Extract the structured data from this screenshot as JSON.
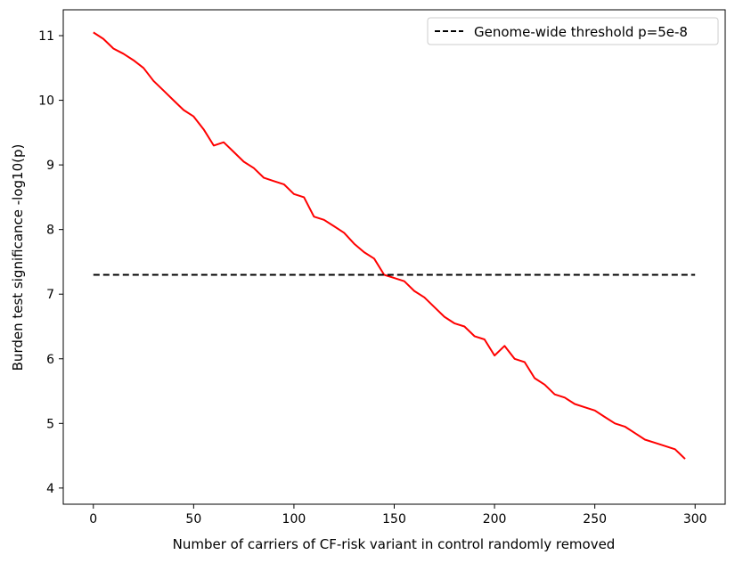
{
  "chart_data": {
    "type": "line",
    "xlabel": "Number of carriers of CF-risk variant in control randomly removed",
    "ylabel": "Burden test significance -log10(p)",
    "xlim": [
      -15,
      315
    ],
    "ylim": [
      3.75,
      11.4
    ],
    "xticks": [
      0,
      50,
      100,
      150,
      200,
      250,
      300
    ],
    "yticks": [
      4,
      5,
      6,
      7,
      8,
      9,
      10,
      11
    ],
    "grid": false,
    "legend_position": "top-right",
    "series": [
      {
        "color": "#ff0000",
        "x": [
          0,
          5,
          10,
          15,
          20,
          25,
          30,
          35,
          40,
          45,
          50,
          55,
          60,
          65,
          70,
          75,
          80,
          85,
          90,
          95,
          100,
          105,
          110,
          115,
          120,
          125,
          130,
          135,
          140,
          145,
          150,
          155,
          160,
          165,
          170,
          175,
          180,
          185,
          190,
          195,
          200,
          205,
          210,
          215,
          220,
          225,
          230,
          235,
          240,
          245,
          250,
          255,
          260,
          265,
          270,
          275,
          280,
          285,
          290,
          295
        ],
        "y": [
          11.05,
          10.95,
          10.8,
          10.72,
          10.62,
          10.5,
          10.3,
          10.15,
          10.0,
          9.85,
          9.75,
          9.55,
          9.3,
          9.35,
          9.2,
          9.05,
          8.95,
          8.8,
          8.75,
          8.7,
          8.55,
          8.5,
          8.2,
          8.15,
          8.05,
          7.95,
          7.78,
          7.65,
          7.55,
          7.3,
          7.25,
          7.2,
          7.05,
          6.95,
          6.8,
          6.65,
          6.55,
          6.5,
          6.35,
          6.3,
          6.05,
          6.2,
          6.0,
          5.95,
          5.7,
          5.6,
          5.45,
          5.4,
          5.3,
          5.25,
          5.2,
          5.1,
          5.0,
          4.95,
          4.85,
          4.75,
          4.7,
          4.65,
          4.6,
          4.45
        ]
      },
      {
        "name": "Genome-wide threshold p=5e-8",
        "color": "#000000",
        "dash": "dashed",
        "x": [
          0,
          300
        ],
        "y": [
          7.3,
          7.3
        ]
      }
    ]
  }
}
